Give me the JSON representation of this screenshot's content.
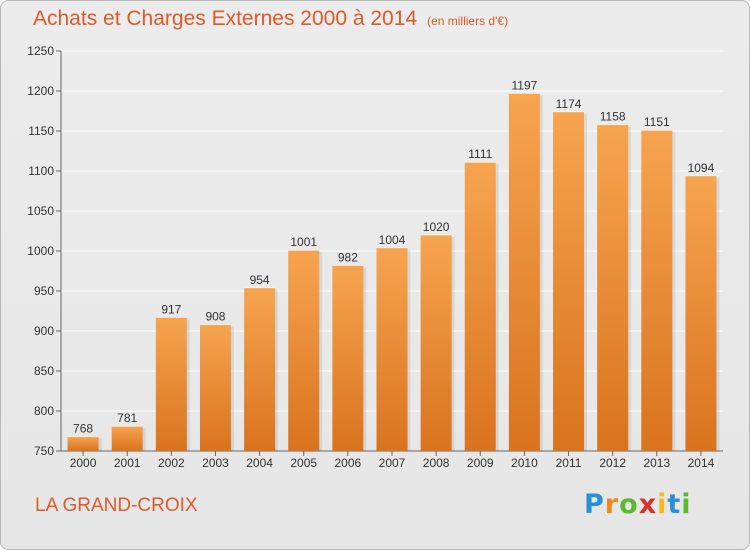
{
  "title": "Achats et Charges Externes 2000 à 2014",
  "unit": "(en milliers d'€)",
  "footer_name": "LA GRAND-CROIX",
  "logo": {
    "text": "Proxiti",
    "letters": [
      "P",
      "r",
      "o",
      "x",
      "i",
      "t",
      "i"
    ],
    "letter_colors": [
      "#2b8fd6",
      "#ef8a1e",
      "#5cb82e",
      "#d8322a",
      "#f2b91f",
      "#2b8fd6",
      "#5cb82e"
    ]
  },
  "colors": {
    "bar_top": "#f6a450",
    "bar_bottom": "#d9731e",
    "text": "#e0592a",
    "axis_text": "#333333",
    "grid": "#ffffff"
  },
  "chart_data": {
    "type": "bar",
    "title": "Achats et Charges Externes 2000 à 2014",
    "subtitle": "(en milliers d'€)",
    "categories": [
      "2000",
      "2001",
      "2002",
      "2003",
      "2004",
      "2005",
      "2006",
      "2007",
      "2008",
      "2009",
      "2010",
      "2011",
      "2012",
      "2013",
      "2014"
    ],
    "values": [
      768,
      781,
      917,
      908,
      954,
      1001,
      982,
      1004,
      1020,
      1111,
      1197,
      1174,
      1158,
      1151,
      1094
    ],
    "ylim": [
      750,
      1250
    ],
    "yticks": [
      750,
      800,
      850,
      900,
      950,
      1000,
      1050,
      1100,
      1150,
      1200,
      1250
    ],
    "grid": true,
    "data_labels": true,
    "xlabel": "",
    "ylabel": ""
  }
}
